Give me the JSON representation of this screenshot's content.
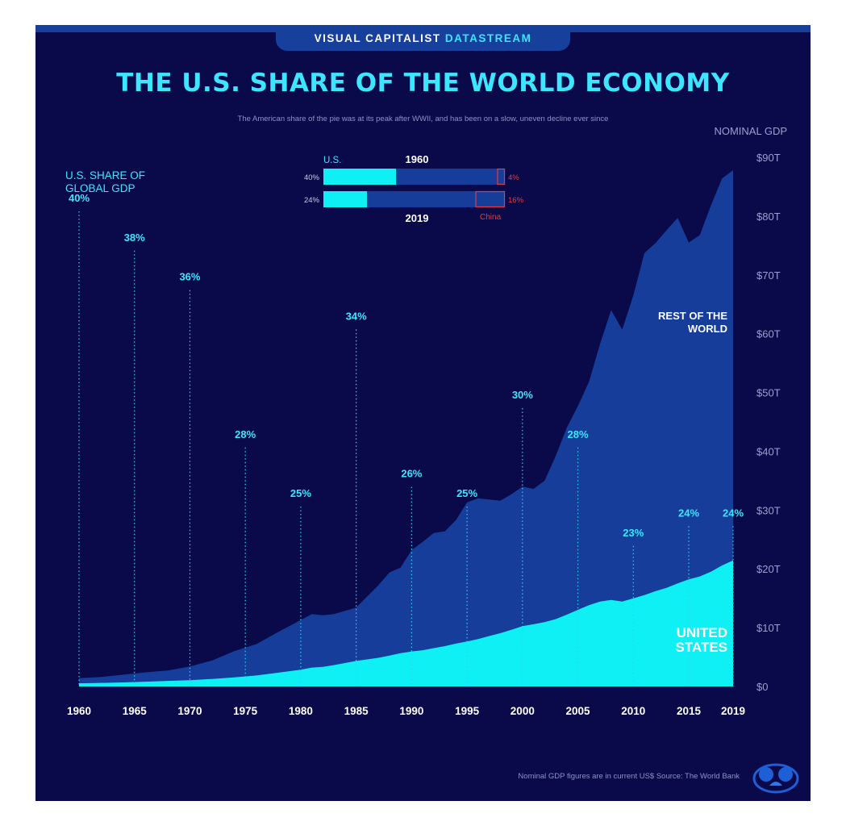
{
  "banner": {
    "prefix": "VISUAL CAPITALIST",
    "accent": "DATASTREAM"
  },
  "title": "THE U.S. SHARE OF THE WORLD ECONOMY",
  "subtitle": "The American share of the pie was at its peak after WWII, and has been on a slow, uneven decline ever since",
  "footer_note": "Nominal GDP figures are in current US$    Source: The World Bank",
  "colors": {
    "background": "#0a0a4a",
    "rest_of_world": "#153d99",
    "united_states": "#0ff0f5",
    "accent_text": "#3ce6ff",
    "muted_text": "#9aa0d0",
    "china": "#e23c3c"
  },
  "chart_data": [
    {
      "type": "area",
      "stacked": false,
      "ylabel": "NOMINAL GDP",
      "ylim": [
        0,
        90
      ],
      "yticks": [
        0,
        10,
        20,
        30,
        40,
        50,
        60,
        70,
        80,
        90
      ],
      "ytick_labels": [
        "$0",
        "$10T",
        "$20T",
        "$30T",
        "$40T",
        "$50T",
        "$60T",
        "$70T",
        "$80T",
        "$90T"
      ],
      "xlim": [
        1960,
        2019
      ],
      "xticks": [
        1960,
        1965,
        1970,
        1975,
        1980,
        1985,
        1990,
        1995,
        2000,
        2005,
        2010,
        2015,
        2019
      ],
      "x": [
        1960,
        1962,
        1964,
        1966,
        1968,
        1970,
        1972,
        1974,
        1976,
        1978,
        1980,
        1981,
        1982,
        1983,
        1985,
        1987,
        1988,
        1989,
        1990,
        1991,
        1992,
        1993,
        1994,
        1995,
        1996,
        1997,
        1998,
        1999,
        2000,
        2001,
        2002,
        2003,
        2004,
        2005,
        2006,
        2007,
        2008,
        2009,
        2010,
        2011,
        2012,
        2013,
        2014,
        2015,
        2016,
        2017,
        2018,
        2019
      ],
      "series": [
        {
          "name": "REST OF THE WORLD",
          "color": "#153d99",
          "values": [
            1.4,
            1.6,
            2.0,
            2.4,
            2.7,
            3.4,
            4.4,
            6.0,
            7.2,
            9.3,
            11.3,
            12.3,
            12.1,
            12.3,
            13.4,
            17.2,
            19.4,
            20.2,
            23.2,
            24.6,
            26.1,
            26.4,
            28.3,
            31.3,
            32.0,
            31.8,
            31.6,
            32.7,
            34.0,
            33.6,
            35.0,
            39.2,
            44.0,
            47.7,
            51.8,
            58.3,
            64.0,
            60.7,
            66.5,
            73.7,
            75.4,
            77.6,
            79.7,
            75.5,
            76.8,
            81.8,
            86.4,
            87.8
          ]
        },
        {
          "name": "UNITED STATES",
          "color": "#0ff0f5",
          "values": [
            0.54,
            0.6,
            0.69,
            0.81,
            0.94,
            1.07,
            1.28,
            1.55,
            1.87,
            2.35,
            2.86,
            3.21,
            3.34,
            3.64,
            4.34,
            4.87,
            5.25,
            5.66,
            5.96,
            6.16,
            6.52,
            6.86,
            7.29,
            7.64,
            8.07,
            8.58,
            9.06,
            9.63,
            10.25,
            10.58,
            10.94,
            11.46,
            12.21,
            13.04,
            13.81,
            14.45,
            14.71,
            14.45,
            14.99,
            15.54,
            16.2,
            16.78,
            17.52,
            18.22,
            18.71,
            19.52,
            20.58,
            21.43
          ]
        }
      ]
    },
    {
      "type": "annotation",
      "title": "U.S. SHARE OF GLOBAL GDP",
      "x": [
        1960,
        1965,
        1970,
        1975,
        1980,
        1985,
        1990,
        1995,
        2000,
        2005,
        2010,
        2015,
        2019
      ],
      "values": [
        40,
        38,
        36,
        28,
        25,
        34,
        26,
        25,
        30,
        28,
        23,
        24,
        24
      ],
      "labels": [
        "40%",
        "38%",
        "36%",
        "28%",
        "25%",
        "34%",
        "26%",
        "25%",
        "30%",
        "28%",
        "23%",
        "24%",
        "24%"
      ]
    },
    {
      "type": "bar",
      "orientation": "horizontal",
      "stacked": true,
      "xlim": [
        0,
        100
      ],
      "categories": [
        "1960",
        "2019"
      ],
      "series": [
        {
          "name": "U.S.",
          "values": [
            40,
            24
          ],
          "labels": [
            "40%",
            "24%"
          ]
        },
        {
          "name": "China",
          "values": [
            4,
            16
          ],
          "labels": [
            "4%",
            "16%"
          ]
        }
      ]
    }
  ]
}
